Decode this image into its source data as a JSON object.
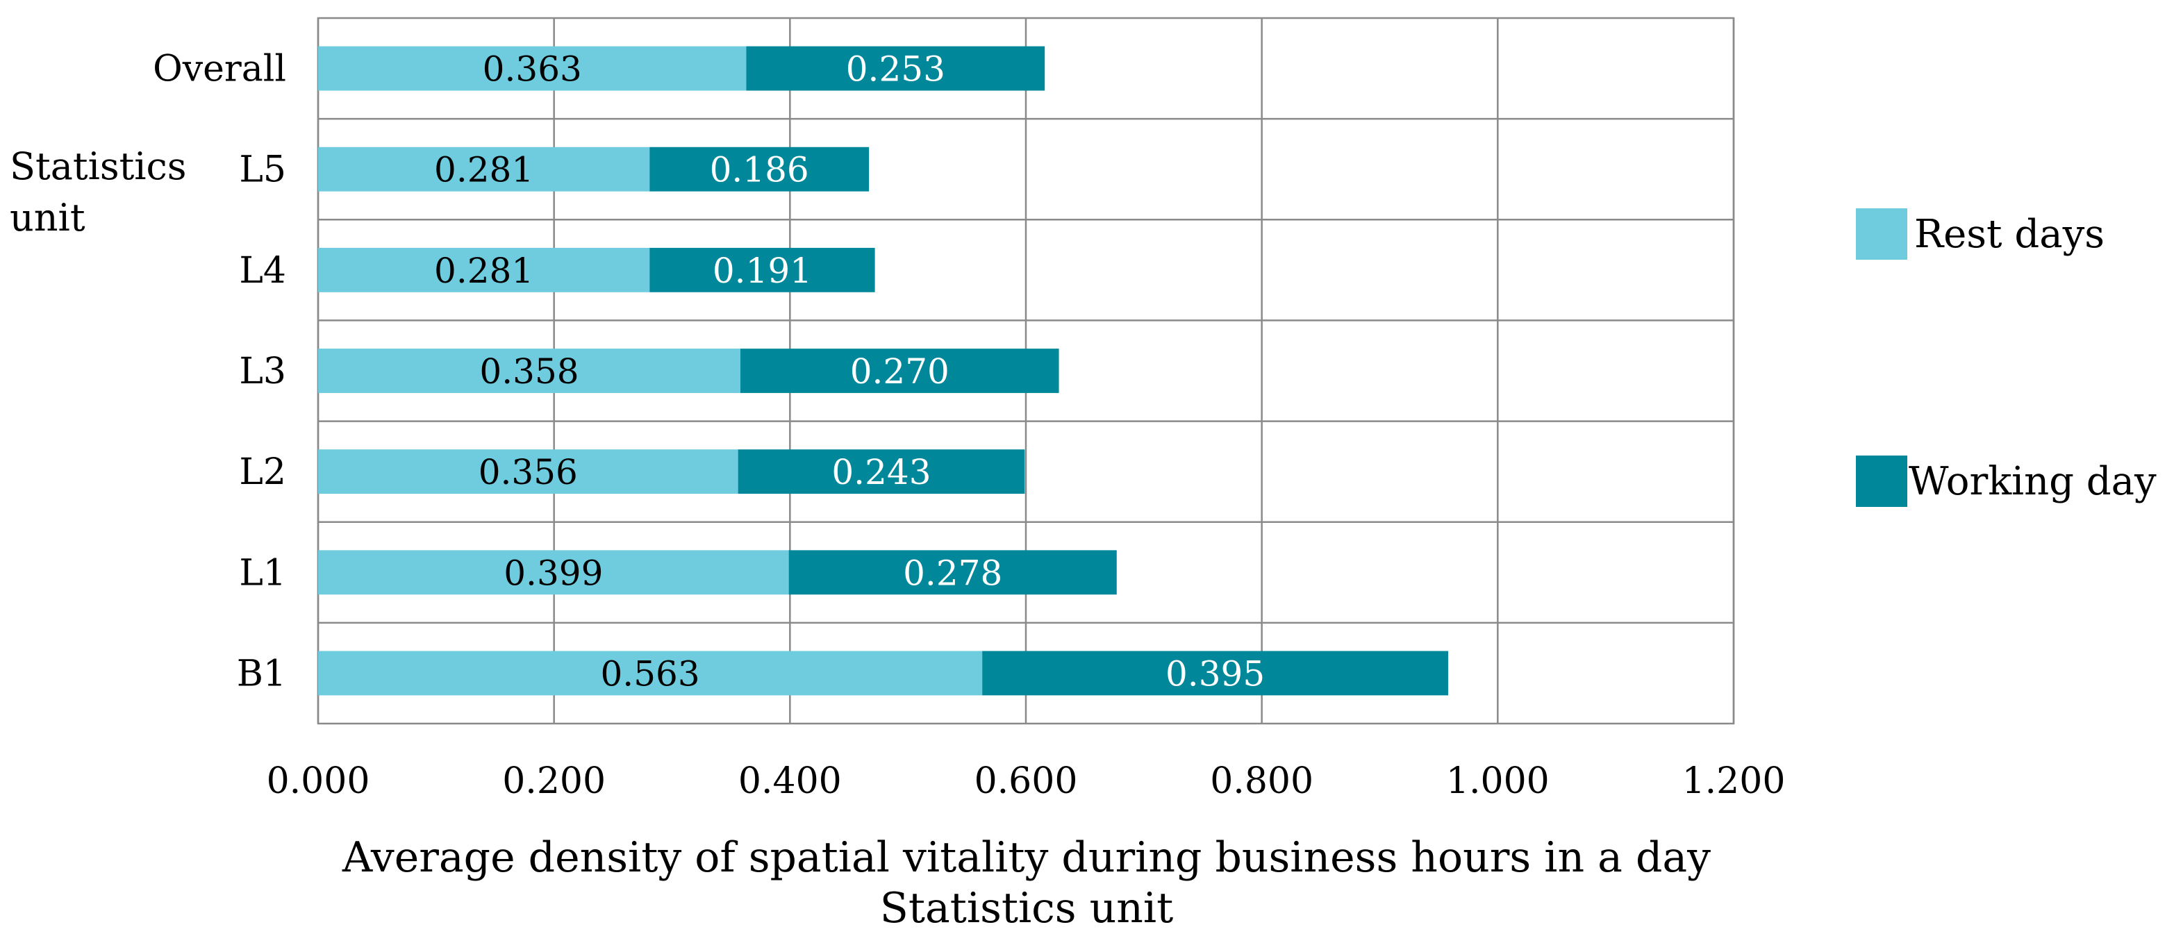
{
  "chart_data": {
    "type": "bar",
    "orientation": "horizontal",
    "stacked": true,
    "categories": [
      "Overall",
      "L5",
      "L4",
      "L3",
      "L2",
      "L1",
      "B1"
    ],
    "series": [
      {
        "name": "Rest days",
        "color": "#6fcbde",
        "label_color": "#000000",
        "values": [
          0.363,
          0.281,
          0.281,
          0.358,
          0.356,
          0.399,
          0.563
        ],
        "labels": [
          "0.363",
          "0.281",
          "0.281",
          "0.358",
          "0.356",
          "0.399",
          "0.563"
        ]
      },
      {
        "name": "Working day",
        "color": "#00889a",
        "label_color": "#ffffff",
        "values": [
          0.253,
          0.186,
          0.191,
          0.27,
          0.243,
          0.278,
          0.395
        ],
        "labels": [
          "0.253",
          "0.186",
          "0.191",
          "0.270",
          "0.243",
          "0.278",
          "0.395"
        ]
      }
    ],
    "xlim": [
      0,
      1.2
    ],
    "xticks": [
      0,
      0.2,
      0.4,
      0.6,
      0.8,
      1.0,
      1.2
    ],
    "xtick_labels": [
      "0.000",
      "0.200",
      "0.400",
      "0.600",
      "0.800",
      "1.000",
      "1.200"
    ],
    "xlabel": "Average density of spatial vitality during business hours in a day",
    "xlabel_line2": "Statistics unit",
    "ylabel_line1": "Statistics",
    "ylabel_line2": "unit",
    "grid": true,
    "legend_position": "right"
  }
}
